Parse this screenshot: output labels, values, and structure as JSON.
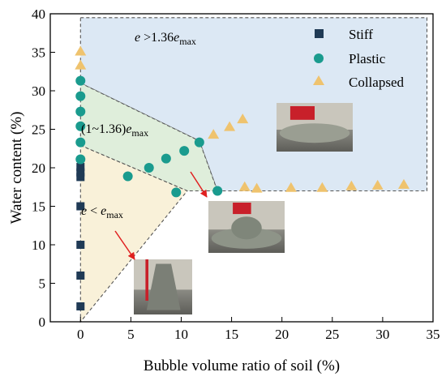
{
  "chart_data": {
    "type": "scatter",
    "xlabel": "Bubble volume ratio of soil (%)",
    "ylabel": "Water content (%)",
    "xlim": [
      -3,
      35
    ],
    "ylim": [
      0,
      40
    ],
    "x_ticks": [
      0,
      5,
      10,
      15,
      20,
      25,
      30,
      35
    ],
    "y_ticks": [
      0,
      5,
      10,
      15,
      20,
      25,
      30,
      35,
      40
    ],
    "grid": false,
    "legend_position": "top-right",
    "series": [
      {
        "name": "Stiff",
        "marker": "square",
        "color": "#1f3a55",
        "points": [
          [
            0,
            2
          ],
          [
            0,
            6
          ],
          [
            0,
            10
          ],
          [
            0,
            15
          ],
          [
            0,
            18.8
          ],
          [
            0,
            19.4
          ],
          [
            0,
            20.1
          ]
        ]
      },
      {
        "name": "Plastic",
        "marker": "circle",
        "color": "#1a9b8e",
        "points": [
          [
            0,
            31.3
          ],
          [
            0,
            29.3
          ],
          [
            0,
            27.3
          ],
          [
            0,
            25.4
          ],
          [
            0,
            23.3
          ],
          [
            0,
            21.1
          ],
          [
            4.7,
            18.9
          ],
          [
            6.8,
            20.0
          ],
          [
            8.5,
            21.2
          ],
          [
            10.3,
            22.2
          ],
          [
            9.5,
            16.8
          ],
          [
            11.8,
            23.3
          ],
          [
            13.6,
            17.0
          ]
        ]
      },
      {
        "name": "Collapsed",
        "marker": "triangle",
        "color": "#efc36e",
        "points": [
          [
            0,
            35.1
          ],
          [
            0,
            33.3
          ],
          [
            13.2,
            24.3
          ],
          [
            14.8,
            25.3
          ],
          [
            16.1,
            26.3
          ],
          [
            16.3,
            17.5
          ],
          [
            17.5,
            17.3
          ],
          [
            20.9,
            17.4
          ],
          [
            24.0,
            17.4
          ],
          [
            26.9,
            17.6
          ],
          [
            29.5,
            17.7
          ],
          [
            32.1,
            17.8
          ]
        ]
      }
    ],
    "regions": [
      {
        "id": "collapsed-region",
        "polygon": [
          [
            0,
            39.5
          ],
          [
            34.4,
            39.5
          ],
          [
            34.4,
            17.0
          ],
          [
            13.6,
            17.0
          ],
          [
            11.8,
            23.5
          ],
          [
            0,
            31.0
          ]
        ],
        "fill": "#dce8f4"
      },
      {
        "id": "plastic-region",
        "polygon": [
          [
            0,
            31.0
          ],
          [
            11.8,
            23.5
          ],
          [
            13.6,
            17.0
          ],
          [
            10.6,
            17.0
          ],
          [
            0,
            22.9
          ]
        ],
        "fill": "#dfeedb"
      },
      {
        "id": "stiff-region",
        "polygon": [
          [
            0,
            22.9
          ],
          [
            10.6,
            17.0
          ],
          [
            0,
            0
          ]
        ],
        "fill": "#f9f1d9"
      }
    ],
    "annotations": [
      {
        "id": "collapsed-condition",
        "parts": [
          "e",
          " >1.36",
          "e",
          "max"
        ]
      },
      {
        "id": "plastic-condition",
        "parts": [
          "(1~1.36)",
          "e",
          "max"
        ]
      },
      {
        "id": "stiff-condition",
        "parts": [
          "e",
          " < ",
          "e",
          "max"
        ]
      }
    ],
    "photos": [
      {
        "id": "photo-collapsed"
      },
      {
        "id": "photo-plastic"
      },
      {
        "id": "photo-stiff"
      }
    ]
  }
}
